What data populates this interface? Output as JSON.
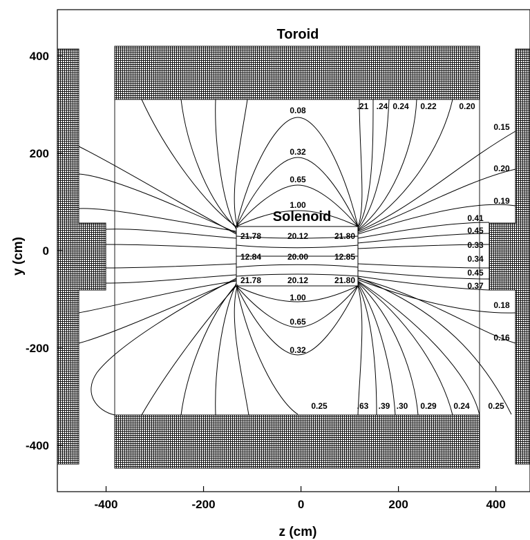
{
  "axes": {
    "xlabel": "z (cm)",
    "ylabel": "y (cm)",
    "xlim": [
      -500,
      470
    ],
    "ylim": [
      -495,
      495
    ],
    "xticks": [
      -400,
      -200,
      0,
      200,
      400
    ],
    "yticks": [
      400,
      200,
      0,
      -200,
      -400
    ]
  },
  "regions": {
    "toroid_label": "Toroid",
    "solenoid_label": "Solenoid"
  },
  "field_values": {
    "solenoid_top": [
      "21.78",
      "20.12",
      "21.80"
    ],
    "solenoid_mid": [
      "12.84",
      "20.00",
      "12.85"
    ],
    "solenoid_bottom": [
      "21.78",
      "20.12",
      "21.80"
    ],
    "axis_above": [
      "0.08",
      "0.32",
      "0.65",
      "1.00"
    ],
    "axis_below": [
      "1.00",
      "0.65",
      "0.32"
    ],
    "top_row": [
      ".21",
      ".24",
      "0.24",
      "0.22",
      "0.20"
    ],
    "bottom_row": [
      "0.25",
      ".63",
      ".39",
      ".30",
      "0.29",
      "0.24",
      "0.25"
    ],
    "right_upper": [
      "0.15",
      "0.20",
      "0.19"
    ],
    "right_mid": [
      "0.41",
      "0.45",
      "0.33",
      "0.34",
      "0.45",
      "0.37"
    ],
    "right_lower": [
      "0.18",
      "0.16"
    ]
  },
  "colors": {
    "ink": "#000000",
    "background": "#ffffff"
  }
}
